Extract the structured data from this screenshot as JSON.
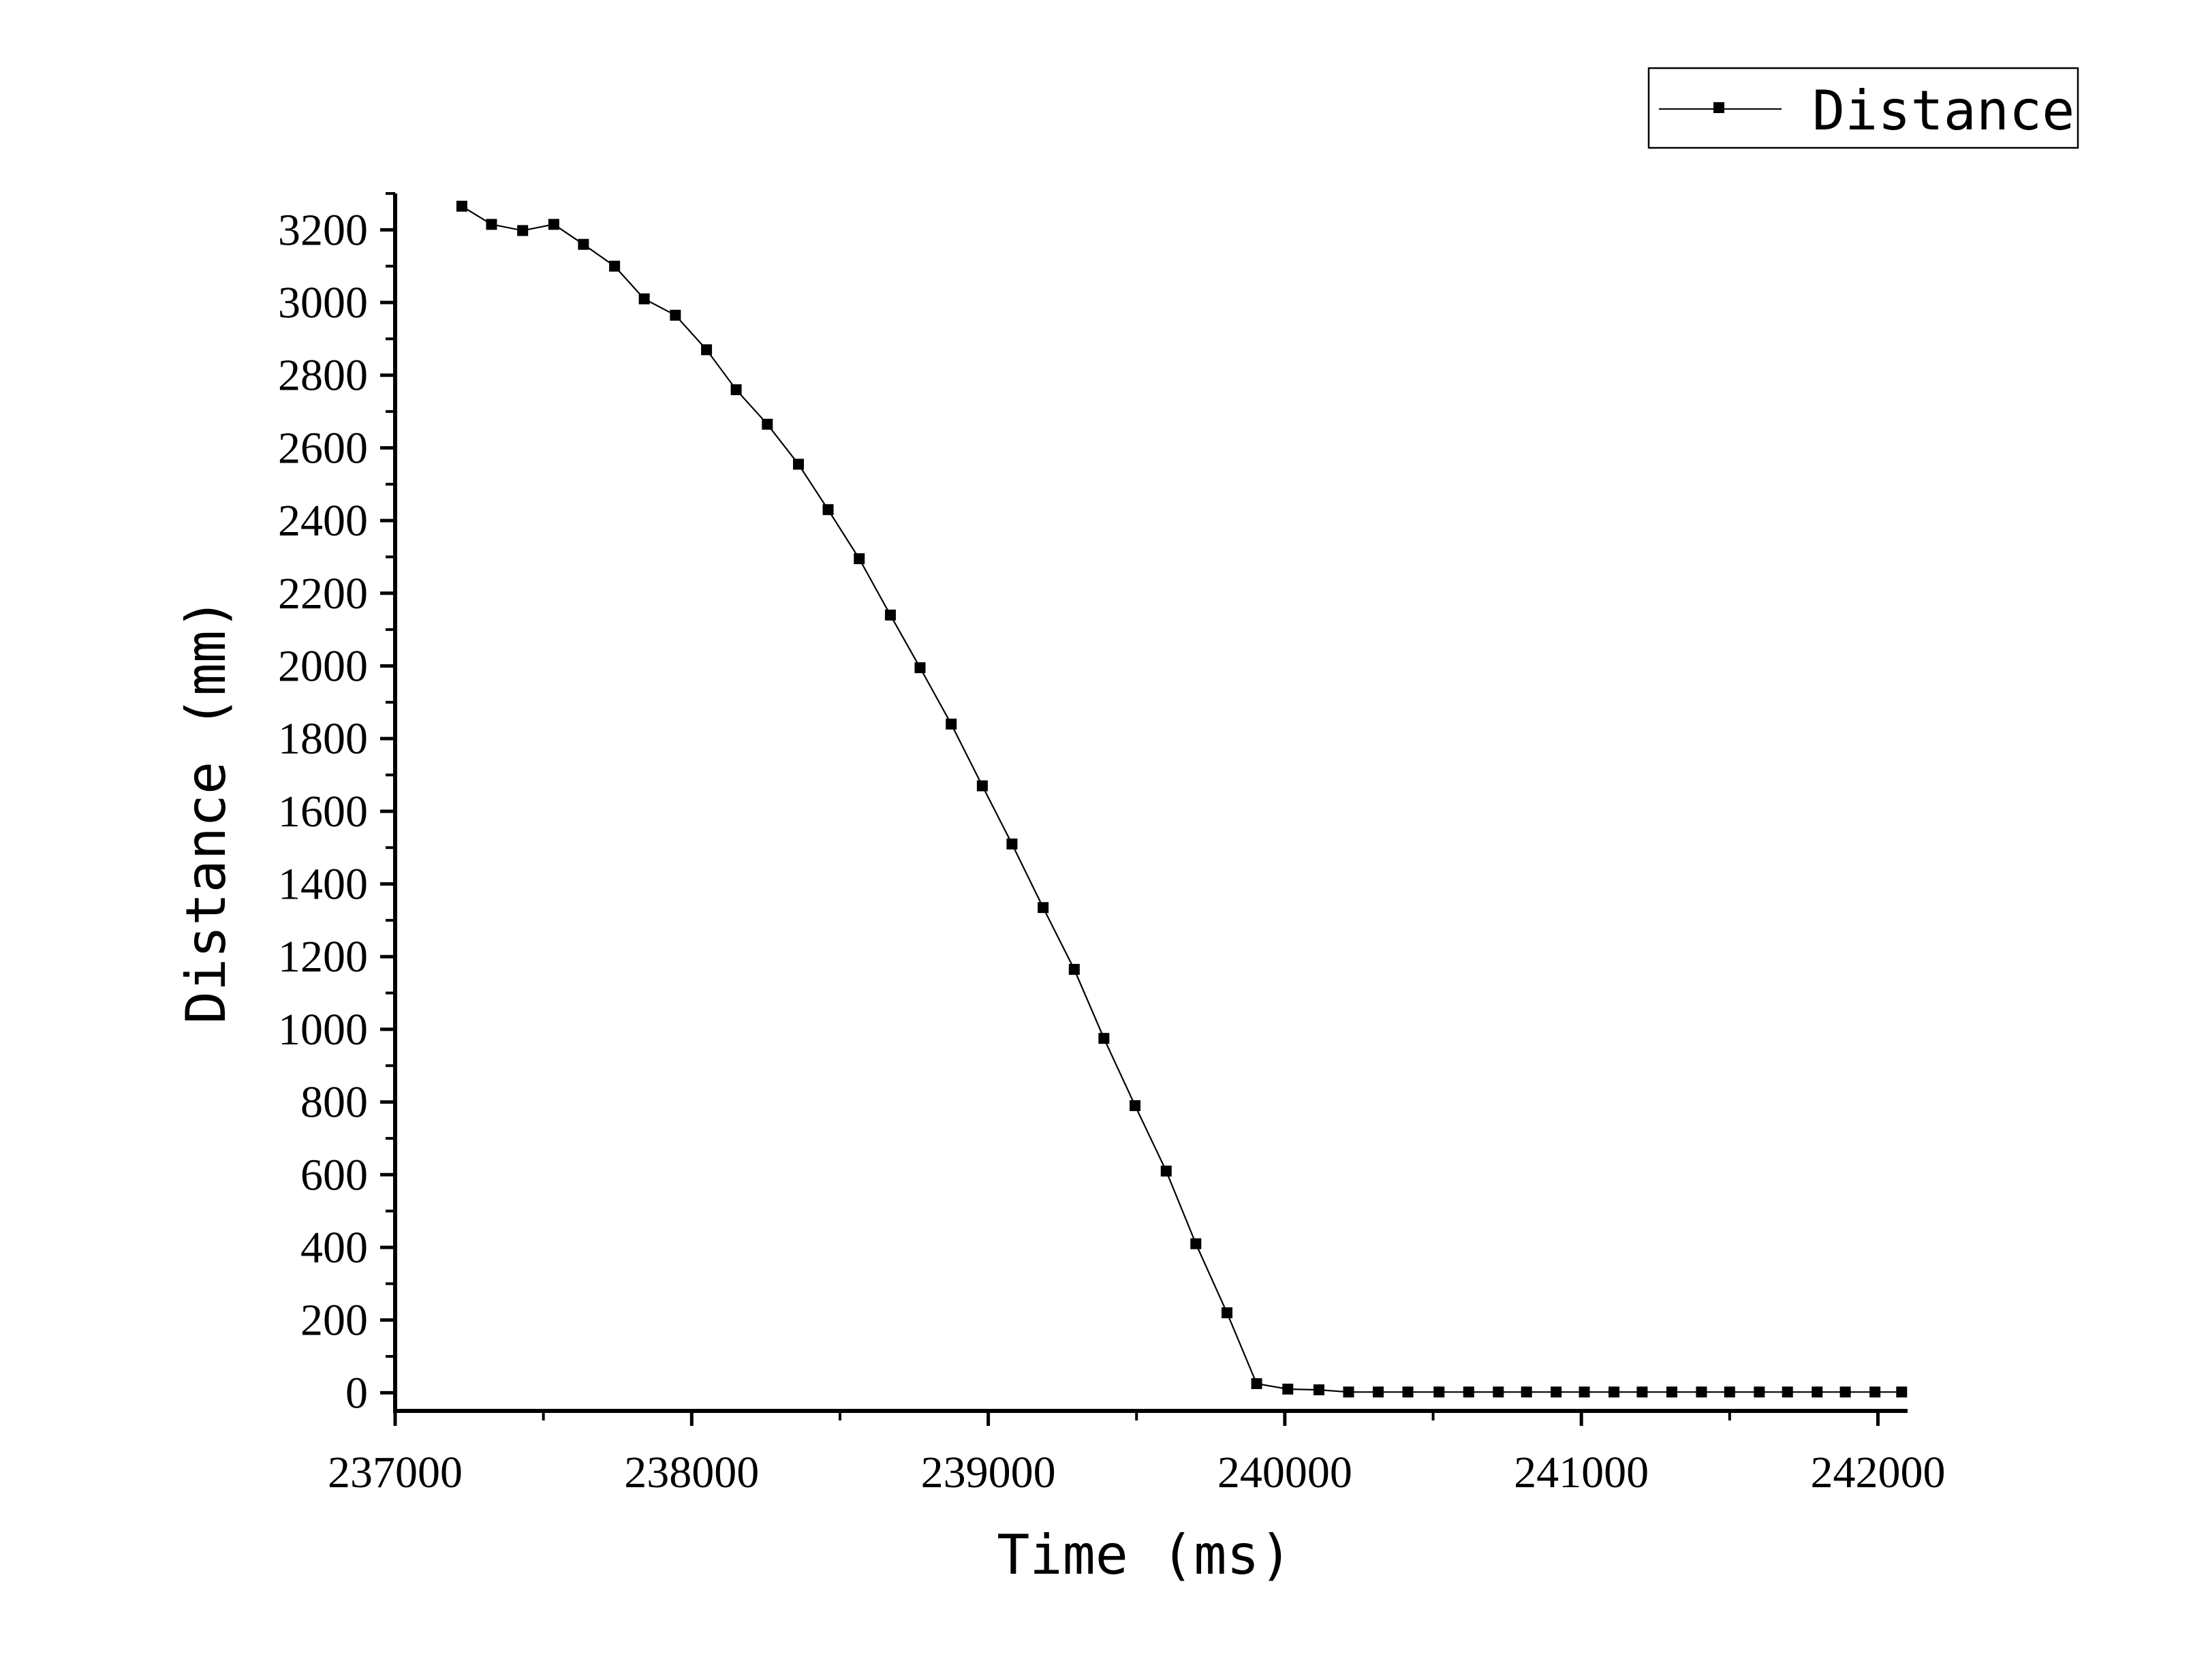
{
  "chart_data": {
    "type": "line",
    "title": "",
    "xlabel": "Time (ms)",
    "ylabel": "Distance (mm)",
    "xlim": [
      237000,
      242100
    ],
    "ylim": [
      -50,
      3300
    ],
    "x_ticks": [
      237000,
      238000,
      239000,
      240000,
      241000,
      242000
    ],
    "x_tick_labels": [
      "237000",
      "238000",
      "239000",
      "240000",
      "241000",
      "242000"
    ],
    "y_ticks": [
      0,
      200,
      400,
      600,
      800,
      1000,
      1200,
      1400,
      1600,
      1800,
      2000,
      2200,
      2400,
      2600,
      2800,
      3000,
      3200
    ],
    "y_tick_labels": [
      "0",
      "200",
      "400",
      "600",
      "800",
      "1000",
      "1200",
      "1400",
      "1600",
      "1800",
      "2000",
      "2200",
      "2400",
      "2600",
      "2800",
      "3000",
      "3200"
    ],
    "grid": false,
    "legend_position": "top-right",
    "marker": "square",
    "line_color": "#000000",
    "series": [
      {
        "name": "Distance",
        "x": [
          237225,
          237325,
          237430,
          237535,
          237635,
          237740,
          237840,
          237945,
          238050,
          238150,
          238255,
          238360,
          238460,
          238565,
          238670,
          238770,
          238875,
          238980,
          239080,
          239185,
          239290,
          239390,
          239495,
          239600,
          239700,
          239805,
          239905,
          240010,
          240115,
          240215,
          240315,
          240415,
          240520,
          240620,
          240720,
          240815,
          240915,
          241010,
          241110,
          241205,
          241305,
          241405,
          241500,
          241600,
          241695,
          241795,
          241890,
          241990,
          242080
        ],
        "y": [
          3265,
          3215,
          3198,
          3215,
          3160,
          3100,
          3010,
          2965,
          2870,
          2760,
          2665,
          2555,
          2430,
          2295,
          2140,
          1995,
          1840,
          1670,
          1510,
          1335,
          1165,
          975,
          790,
          610,
          410,
          220,
          25,
          10,
          8,
          2,
          2,
          2,
          2,
          2,
          2,
          2,
          2,
          2,
          2,
          2,
          2,
          2,
          2,
          2,
          2,
          2,
          2,
          2,
          2
        ]
      }
    ]
  }
}
